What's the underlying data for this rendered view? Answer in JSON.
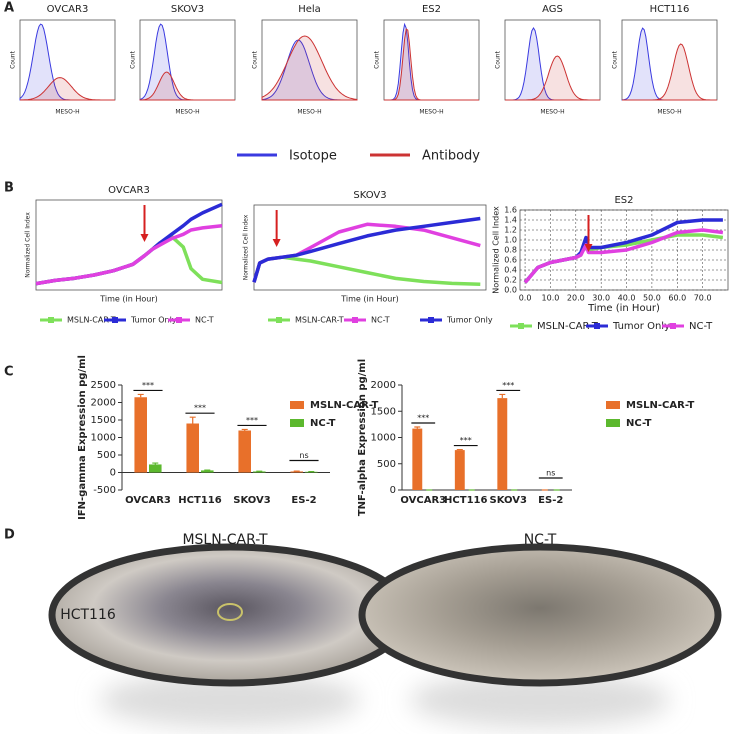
{
  "figure_labels": [
    "A",
    "B",
    "C",
    "D"
  ],
  "panel_a": {
    "plots": [
      {
        "title": "OVCAR3",
        "y_label": "Count",
        "x_label": "MESO-H"
      },
      {
        "title": "SKOV3",
        "y_label": "Count",
        "x_label": "MESO-H"
      },
      {
        "title": "Hela",
        "y_label": "Count",
        "x_label": "MESO-H"
      },
      {
        "title": "ES2",
        "y_label": "Count",
        "x_label": "MESO-H"
      },
      {
        "title": "AGS",
        "y_label": "Count",
        "x_label": "MESO-H"
      },
      {
        "title": "HCT116",
        "y_label": "Count",
        "x_label": "MESO-H"
      }
    ],
    "legend": [
      {
        "name": "Isotope",
        "color": "#3a3ae0"
      },
      {
        "name": "Antibody",
        "color": "#cc3333"
      }
    ]
  },
  "panel_b": {
    "charts": [
      {
        "type": "line",
        "title": "OVCAR3",
        "x_label": "Time (in Hour)",
        "y_label": "Normalized Cell Index",
        "xlim": [
          0,
          48
        ],
        "ylim": [
          0,
          4.2
        ],
        "treatment_time": 28,
        "x": [
          0,
          5,
          10,
          15,
          20,
          25,
          28,
          30,
          32,
          35,
          38,
          40,
          43,
          48
        ],
        "series": [
          {
            "name": "MSLN-CAR-T",
            "color": "#7ee05a",
            "values": [
              0.3,
              0.45,
              0.55,
              0.7,
              0.9,
              1.2,
              1.6,
              1.9,
              2.2,
              2.5,
              2.0,
              1.0,
              0.5,
              0.35
            ]
          },
          {
            "name": "Tumor Only",
            "color": "#2b2bd6",
            "values": [
              0.3,
              0.45,
              0.55,
              0.7,
              0.9,
              1.2,
              1.6,
              1.9,
              2.2,
              2.6,
              3.0,
              3.3,
              3.6,
              4.0
            ]
          },
          {
            "name": "NC-T",
            "color": "#e040e0",
            "values": [
              0.3,
              0.45,
              0.55,
              0.7,
              0.9,
              1.2,
              1.6,
              1.9,
              2.1,
              2.4,
              2.6,
              2.8,
              2.9,
              3.0
            ]
          }
        ]
      },
      {
        "type": "line",
        "title": "SKOV3",
        "x_label": "Time (in Hour)",
        "y_label": "Normalized Cell Index",
        "xlim": [
          0,
          82
        ],
        "ylim": [
          0,
          2.2
        ],
        "treatment_time": 8,
        "x": [
          0,
          2,
          5,
          10,
          15,
          20,
          30,
          40,
          50,
          60,
          70,
          80
        ],
        "series": [
          {
            "name": "MSLN-CAR-T",
            "color": "#7ee05a",
            "values": [
              0.2,
              0.7,
              0.8,
              0.85,
              0.8,
              0.75,
              0.6,
              0.45,
              0.3,
              0.22,
              0.17,
              0.15
            ]
          },
          {
            "name": "NC-T",
            "color": "#e040e0",
            "values": [
              0.2,
              0.7,
              0.8,
              0.85,
              0.9,
              1.1,
              1.5,
              1.7,
              1.65,
              1.55,
              1.35,
              1.15
            ]
          },
          {
            "name": "Tumor Only",
            "color": "#2b2bd6",
            "values": [
              0.2,
              0.7,
              0.8,
              0.85,
              0.9,
              1.0,
              1.2,
              1.4,
              1.55,
              1.65,
              1.75,
              1.85
            ]
          }
        ]
      },
      {
        "type": "line",
        "title": "ES2",
        "x_label": "Time (in Hour)",
        "y_label": "Normalized Cell Index",
        "xlim": [
          -2,
          80
        ],
        "ylim": [
          0,
          1.6
        ],
        "treatment_time": 25,
        "xticks": [
          {
            "value": 0,
            "label": "0.0"
          },
          {
            "value": 10,
            "label": "10.0"
          },
          {
            "value": 20,
            "label": "20.0"
          },
          {
            "value": 30,
            "label": "30.0"
          },
          {
            "value": 40,
            "label": "40.0"
          },
          {
            "value": 50,
            "label": "50.0"
          },
          {
            "value": 60,
            "label": "60.0"
          },
          {
            "value": 70,
            "label": "70.0"
          }
        ],
        "yticks": [
          {
            "value": 0,
            "label": "0.0"
          },
          0.2,
          0.4,
          0.6,
          0.8,
          {
            "value": 1,
            "label": "1.0"
          },
          1.2,
          1.4,
          1.6
        ],
        "x": [
          0,
          5,
          10,
          20,
          22,
          24,
          25,
          30,
          40,
          50,
          60,
          70,
          78
        ],
        "series": [
          {
            "name": "MSLN-CAR-T",
            "color": "#7ee05a",
            "values": [
              0.15,
              0.45,
              0.55,
              0.65,
              0.7,
              0.95,
              0.8,
              0.85,
              0.9,
              1.0,
              1.1,
              1.1,
              1.05
            ]
          },
          {
            "name": "Tumor Only",
            "color": "#2b2bd6",
            "values": [
              0.15,
              0.45,
              0.55,
              0.65,
              0.75,
              1.05,
              0.85,
              0.85,
              0.95,
              1.1,
              1.35,
              1.4,
              1.4
            ]
          },
          {
            "name": "NC-T",
            "color": "#e040e0",
            "values": [
              0.15,
              0.45,
              0.55,
              0.65,
              0.7,
              0.9,
              0.75,
              0.75,
              0.8,
              0.95,
              1.15,
              1.2,
              1.15
            ]
          }
        ]
      }
    ]
  },
  "panel_c": {
    "charts": [
      {
        "type": "bar",
        "y_label": "IFN-gamma Expression pg/ml",
        "ylim": [
          -500,
          2500
        ],
        "yticks": [
          -500,
          0,
          500,
          1000,
          1500,
          2000,
          2500
        ],
        "categories": [
          "OVCAR3",
          "HCT116",
          "SKOV3",
          "ES-2"
        ],
        "significance": [
          "***",
          "***",
          "***",
          "ns"
        ],
        "series": [
          {
            "name": "MSLN-CAR-T",
            "color": "#e8702a",
            "values": [
              2150,
              1400,
              1200,
              30
            ],
            "errors": [
              80,
              180,
              30,
              10
            ]
          },
          {
            "name": "NC-T",
            "color": "#5cb82e",
            "values": [
              230,
              60,
              30,
              20
            ],
            "errors": [
              40,
              10,
              5,
              5
            ]
          }
        ]
      },
      {
        "type": "bar",
        "y_label": "TNF-alpha Expression pg/ml",
        "ylim": [
          0,
          2000
        ],
        "yticks": [
          0,
          500,
          1000,
          1500,
          2000
        ],
        "categories": [
          "OVCAR3",
          "HCT116",
          "SKOV3",
          "ES-2"
        ],
        "significance": [
          "***",
          "***",
          "***",
          "ns"
        ],
        "series": [
          {
            "name": "MSLN-CAR-T",
            "color": "#e8702a",
            "values": [
              1170,
              760,
              1750,
              0
            ],
            "errors": [
              30,
              10,
              70,
              0
            ]
          },
          {
            "name": "NC-T",
            "color": "#5cb82e",
            "values": [
              0,
              0,
              0,
              0
            ],
            "errors": [
              0,
              0,
              0,
              0
            ]
          }
        ]
      }
    ]
  },
  "panel_d": {
    "row_label": "HCT116",
    "columns": [
      "MSLN-CAR-T",
      "NC-T"
    ]
  }
}
